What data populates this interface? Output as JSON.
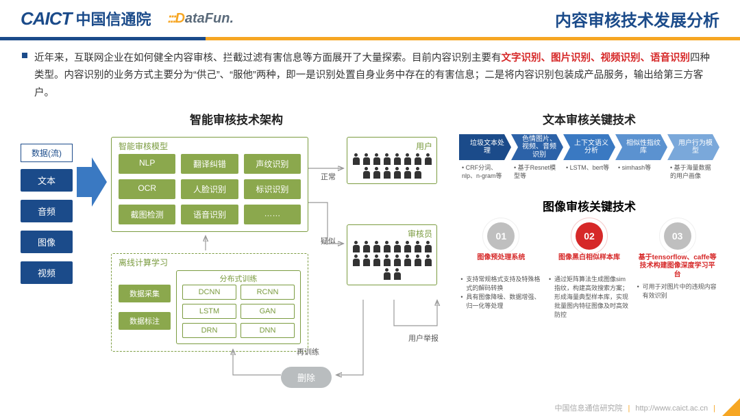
{
  "header": {
    "logo_en": "CAICT",
    "logo_cn": "中国信通院",
    "datafun_d": "D",
    "datafun_rest": "ataFun.",
    "datafun_dots": ":::",
    "title": "内容审核技术发展分析"
  },
  "intro": {
    "t1": "近年来，互联网企业在如何健全内容审核、拦截过滤有害信息等方面展开了大量探索。目前内容识别主要有",
    "r1": "文字识别、图片识别、视频识别、语音识别",
    "t2": "四种类型。内容识别的业务方式主要分为“供己”、“服他”两种，即一是识别处置自身业务中存在的有害信息；二是将内容识别包装成产品服务，输出给第三方客户。"
  },
  "left": {
    "title": "智能审核技术架构",
    "data_head": "数据(流)",
    "data_items": [
      "文本",
      "音频",
      "图像",
      "视频"
    ],
    "model_label": "智能审核模型",
    "model_chips": [
      "NLP",
      "翻译纠错",
      "声纹识别",
      "OCR",
      "人脸识别",
      "标识识别",
      "截图检测",
      "语音识别",
      "……"
    ],
    "offline_label": "离线计算学习",
    "off_left": [
      "数据采集",
      "数据标注"
    ],
    "train_label": "分布式训练",
    "train_chips": [
      "DCNN",
      "RCNN",
      "LSTM",
      "GAN",
      "DRN",
      "DNN"
    ],
    "user": "用户",
    "auditor": "审核员",
    "normal": "正常",
    "doubt": "疑似",
    "retrain": "再训练",
    "report": "用户举报",
    "delete": "删除"
  },
  "right": {
    "text_title": "文本审核关键技术",
    "flow": [
      {
        "t": "垃圾文本处理",
        "c": "#1b4b8a",
        "s": "CRF分词、nlp、n-gram等"
      },
      {
        "t": "色情图片、视频、音频识别",
        "c": "#2c62a8",
        "s": "基于Resnet模型等"
      },
      {
        "t": "上下文语义分析",
        "c": "#3a79c2",
        "s": "LSTM、bert等"
      },
      {
        "t": "相似性指纹库",
        "c": "#5b92d0",
        "s": "simhash等"
      },
      {
        "t": "用户行为模型",
        "c": "#7aa8da",
        "s": "基于海量数据的用户画像"
      }
    ],
    "img_title": "图像审核关键技术",
    "steps": [
      {
        "n": "01",
        "c": "#bfbfbf",
        "title": "图像预处理系统",
        "items": [
          "支持常规格式支持及特殊格式的解码转换",
          "具有图像降噪、数据增强、归一化等处理"
        ]
      },
      {
        "n": "02",
        "c": "#d62828",
        "title": "图像黑白相似样本库",
        "items": [
          "通过矩阵算法生成图像sim指纹，构建高效搜索方案；形成海量典型样本库，实现批量图内特征图像及时高效防控"
        ]
      },
      {
        "n": "03",
        "c": "#bfbfbf",
        "title": "基于tensorflow、caffe等技术构建图像深度学习平台",
        "items": [
          "可用于对图片中的违规内容有效识别"
        ]
      }
    ]
  },
  "footer": {
    "org": "中国信息通信研究院",
    "url": "http://www.caict.ac.cn"
  }
}
